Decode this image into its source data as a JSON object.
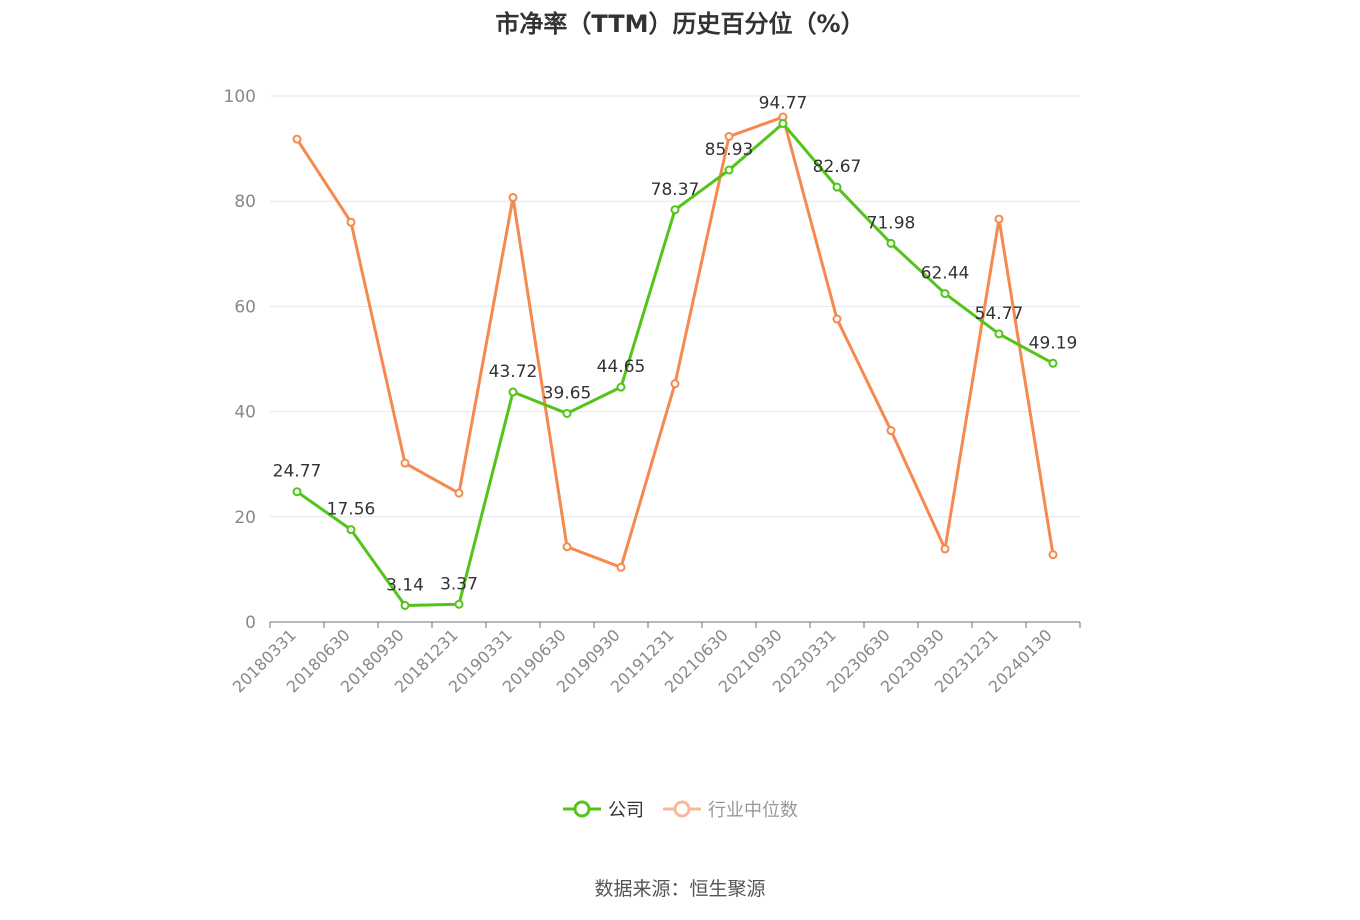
{
  "chart_data": {
    "type": "line",
    "title": "市净率（TTM）历史百分位（%）",
    "categories": [
      "20180331",
      "20180630",
      "20180930",
      "20181231",
      "20190331",
      "20190630",
      "20190930",
      "20191231",
      "20210630",
      "20210930",
      "20230331",
      "20230630",
      "20230930",
      "20231231",
      "20240130"
    ],
    "ylim": [
      0,
      100
    ],
    "yticks": [
      0,
      20,
      40,
      60,
      80,
      100
    ],
    "grid": true,
    "legend_position": "bottom",
    "series": [
      {
        "name": "公司",
        "color": "#52c41a",
        "show_labels": true,
        "values": [
          24.77,
          17.56,
          3.14,
          3.37,
          43.72,
          39.65,
          44.65,
          78.37,
          85.93,
          94.77,
          82.67,
          71.98,
          62.44,
          54.77,
          49.19
        ],
        "labels": [
          "24.77",
          "17.56",
          "3.14",
          "3.37",
          "43.72",
          "39.65",
          "44.65",
          "78.37",
          "85.93",
          "94.77",
          "82.67",
          "71.98",
          "62.44",
          "54.77",
          "49.19"
        ]
      },
      {
        "name": "行业中位数",
        "color": "#f5894f",
        "show_labels": false,
        "values": [
          91.8,
          76.0,
          30.2,
          24.5,
          80.7,
          14.3,
          10.4,
          45.3,
          92.3,
          96.0,
          57.6,
          36.4,
          13.9,
          76.6,
          12.8
        ]
      }
    ]
  },
  "source_text": "数据来源：恒生聚源"
}
